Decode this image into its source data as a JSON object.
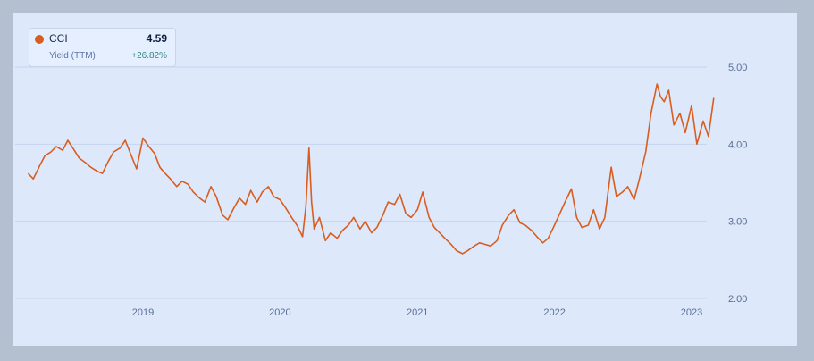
{
  "legend": {
    "ticker": "CCI",
    "value": "4.59",
    "metric": "Yield (TTM)",
    "change": "+26.82%"
  },
  "colors": {
    "line": "#d95d1f",
    "grid": "#c6d4ef",
    "panel": "#dde8fb",
    "frame": "#b4bfcf"
  },
  "chart_data": {
    "type": "line",
    "title": "",
    "xlabel": "",
    "ylabel": "",
    "ylim": [
      2.0,
      5.0
    ],
    "yticks": [
      "2.00",
      "3.00",
      "4.00",
      "5.00"
    ],
    "xticks": [
      "2019",
      "2020",
      "2021",
      "2022",
      "2023"
    ],
    "grid": "horizontal",
    "legend_position": "top-left",
    "series": [
      {
        "x": [
          "2018-03-01",
          "2018-03-15",
          "2018-04-01",
          "2018-04-15",
          "2018-05-01",
          "2018-05-15",
          "2018-06-01",
          "2018-06-15",
          "2018-07-01",
          "2018-07-15",
          "2018-08-01",
          "2018-08-15",
          "2018-09-01",
          "2018-09-15",
          "2018-10-01",
          "2018-10-15",
          "2018-11-01",
          "2018-11-15",
          "2018-12-01",
          "2018-12-15",
          "2019-01-01",
          "2019-01-15",
          "2019-02-01",
          "2019-02-15",
          "2019-03-01",
          "2019-03-15",
          "2019-04-01",
          "2019-04-15",
          "2019-05-01",
          "2019-05-15",
          "2019-06-01",
          "2019-06-15",
          "2019-07-01",
          "2019-07-15",
          "2019-08-01",
          "2019-08-15",
          "2019-09-01",
          "2019-09-15",
          "2019-10-01",
          "2019-10-15",
          "2019-11-01",
          "2019-11-15",
          "2019-12-01",
          "2019-12-15",
          "2020-01-01",
          "2020-01-15",
          "2020-02-01",
          "2020-02-15",
          "2020-03-01",
          "2020-03-10",
          "2020-03-18",
          "2020-03-25",
          "2020-04-01",
          "2020-04-15",
          "2020-05-01",
          "2020-05-15",
          "2020-06-01",
          "2020-06-15",
          "2020-07-01",
          "2020-07-15",
          "2020-08-01",
          "2020-08-15",
          "2020-09-01",
          "2020-09-15",
          "2020-10-01",
          "2020-10-15",
          "2020-11-01",
          "2020-11-15",
          "2020-12-01",
          "2020-12-15",
          "2021-01-01",
          "2021-01-15",
          "2021-02-01",
          "2021-02-15",
          "2021-03-01",
          "2021-03-15",
          "2021-04-01",
          "2021-04-15",
          "2021-05-01",
          "2021-05-15",
          "2021-06-01",
          "2021-06-15",
          "2021-07-01",
          "2021-07-15",
          "2021-08-01",
          "2021-08-15",
          "2021-09-01",
          "2021-09-15",
          "2021-10-01",
          "2021-10-15",
          "2021-11-01",
          "2021-11-15",
          "2021-12-01",
          "2021-12-15",
          "2022-01-01",
          "2022-01-15",
          "2022-02-01",
          "2022-02-15",
          "2022-03-01",
          "2022-03-15",
          "2022-04-01",
          "2022-04-15",
          "2022-05-01",
          "2022-05-15",
          "2022-06-01",
          "2022-06-15",
          "2022-07-01",
          "2022-07-15",
          "2022-08-01",
          "2022-08-15",
          "2022-09-01",
          "2022-09-15",
          "2022-10-01",
          "2022-10-10",
          "2022-10-20",
          "2022-11-01",
          "2022-11-15",
          "2022-12-01",
          "2022-12-15",
          "2023-01-01",
          "2023-01-15",
          "2023-02-01",
          "2023-02-15",
          "2023-03-01"
        ],
        "values": [
          3.62,
          3.55,
          3.72,
          3.85,
          3.9,
          3.97,
          3.92,
          4.05,
          3.93,
          3.82,
          3.76,
          3.7,
          3.65,
          3.62,
          3.78,
          3.9,
          3.95,
          4.05,
          3.85,
          3.68,
          4.08,
          3.98,
          3.88,
          3.7,
          3.62,
          3.55,
          3.45,
          3.52,
          3.48,
          3.38,
          3.3,
          3.25,
          3.45,
          3.32,
          3.08,
          3.02,
          3.18,
          3.3,
          3.22,
          3.4,
          3.25,
          3.38,
          3.45,
          3.32,
          3.28,
          3.18,
          3.05,
          2.95,
          2.8,
          3.2,
          3.95,
          3.25,
          2.9,
          3.05,
          2.75,
          2.85,
          2.78,
          2.88,
          2.95,
          3.05,
          2.9,
          3.0,
          2.85,
          2.92,
          3.08,
          3.25,
          3.22,
          3.35,
          3.1,
          3.05,
          3.15,
          3.38,
          3.05,
          2.92,
          2.85,
          2.78,
          2.7,
          2.62,
          2.58,
          2.62,
          2.68,
          2.72,
          2.7,
          2.68,
          2.75,
          2.95,
          3.08,
          3.15,
          2.98,
          2.95,
          2.88,
          2.8,
          2.72,
          2.78,
          2.95,
          3.1,
          3.28,
          3.42,
          3.05,
          2.92,
          2.95,
          3.15,
          2.9,
          3.05,
          3.7,
          3.32,
          3.38,
          3.45,
          3.28,
          3.55,
          3.9,
          4.4,
          4.78,
          4.62,
          4.55,
          4.7,
          4.25,
          4.4,
          4.15,
          4.5,
          4.0,
          4.3,
          4.1,
          4.6
        ]
      }
    ]
  }
}
